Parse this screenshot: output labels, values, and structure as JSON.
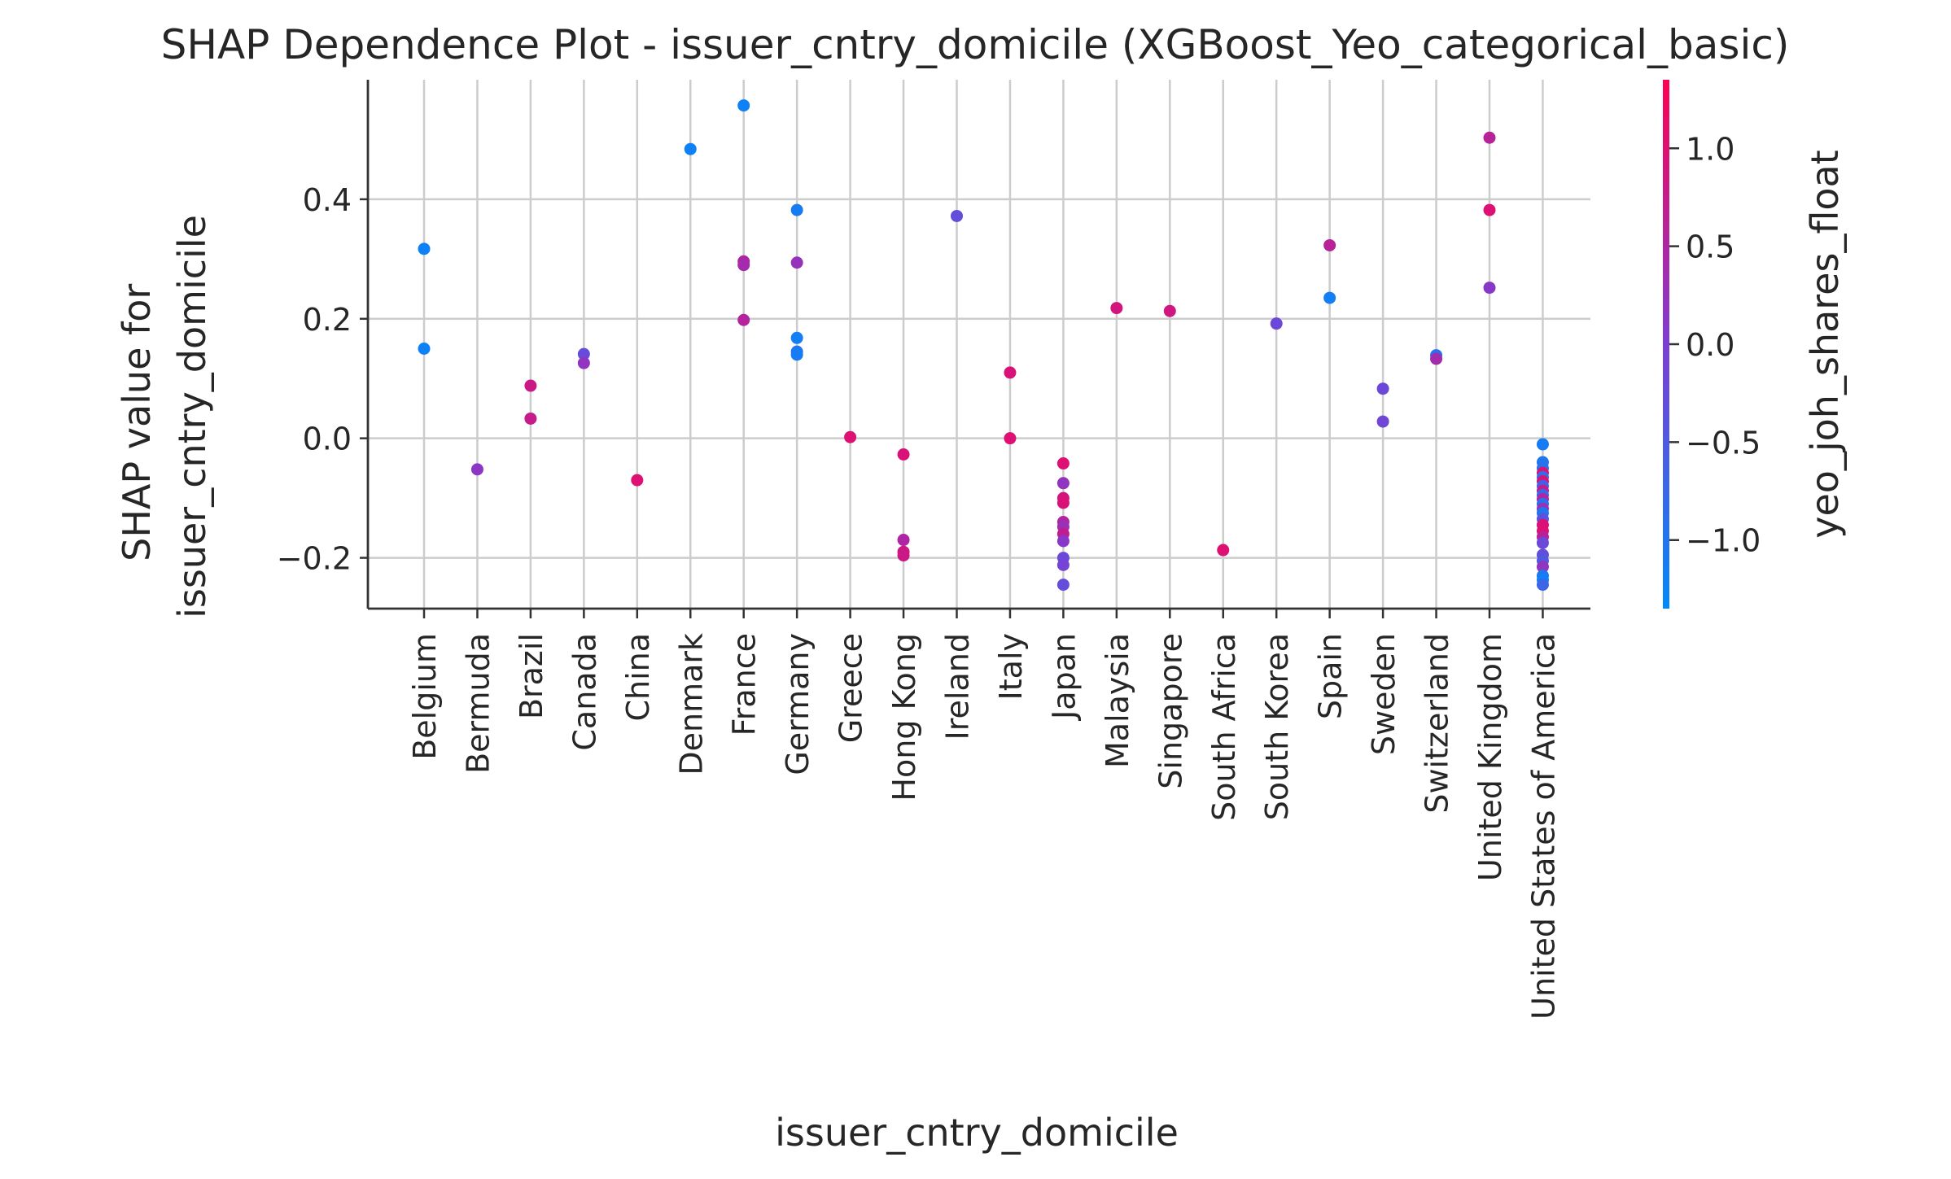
{
  "chart_data": {
    "type": "scatter",
    "title": "SHAP Dependence Plot - issuer_cntry_domicile (XGBoost_Yeo_categorical_basic)",
    "xlabel": "issuer_cntry_domicile",
    "ylabel": [
      "SHAP value for",
      "issuer_cntry_domicile"
    ],
    "colorbar_label": "yeo_joh_shares_float",
    "categories": [
      "Belgium",
      "Bermuda",
      "Brazil",
      "Canada",
      "China",
      "Denmark",
      "France",
      "Germany",
      "Greece",
      "Hong Kong",
      "Ireland",
      "Italy",
      "Japan",
      "Malaysia",
      "Singapore",
      "South Africa",
      "South Korea",
      "Spain",
      "Sweden",
      "Switzerland",
      "United Kingdom",
      "United States of America"
    ],
    "ylim": [
      -0.285,
      0.6
    ],
    "y_ticks": [
      -0.2,
      0.0,
      0.2,
      0.4
    ],
    "y_tick_labels": [
      "−0.2",
      "0.0",
      "0.2",
      "0.4"
    ],
    "color_range": [
      -1.35,
      1.35
    ],
    "color_ticks": [
      -1.0,
      -0.5,
      0.0,
      0.5,
      1.0
    ],
    "color_tick_labels": [
      "−1.0",
      "−0.5",
      "0.0",
      "0.5",
      "1.0"
    ],
    "colors": {
      "low": "#008afb",
      "mid": "#7e3dd2",
      "high": "#ff0052"
    },
    "grid": true,
    "points": [
      {
        "x": "Belgium",
        "y": 0.317,
        "c": -1.2
      },
      {
        "x": "Belgium",
        "y": 0.15,
        "c": -1.2
      },
      {
        "x": "Bermuda",
        "y": -0.052,
        "c": 0.15
      },
      {
        "x": "Brazil",
        "y": 0.088,
        "c": 0.8
      },
      {
        "x": "Brazil",
        "y": 0.033,
        "c": 0.75
      },
      {
        "x": "Canada",
        "y": 0.141,
        "c": -0.25
      },
      {
        "x": "Canada",
        "y": 0.126,
        "c": 0.2
      },
      {
        "x": "China",
        "y": -0.07,
        "c": 1.0
      },
      {
        "x": "Denmark",
        "y": 0.484,
        "c": -1.2
      },
      {
        "x": "France",
        "y": 0.557,
        "c": -1.2
      },
      {
        "x": "France",
        "y": 0.296,
        "c": 0.5
      },
      {
        "x": "France",
        "y": 0.29,
        "c": 0.4
      },
      {
        "x": "France",
        "y": 0.198,
        "c": 0.55
      },
      {
        "x": "Germany",
        "y": 0.382,
        "c": -1.1
      },
      {
        "x": "Germany",
        "y": 0.294,
        "c": 0.25
      },
      {
        "x": "Germany",
        "y": 0.168,
        "c": -1.15
      },
      {
        "x": "Germany",
        "y": 0.145,
        "c": -1.0
      },
      {
        "x": "Germany",
        "y": 0.14,
        "c": -1.1
      },
      {
        "x": "Greece",
        "y": 0.002,
        "c": 1.0
      },
      {
        "x": "Hong Kong",
        "y": -0.027,
        "c": 0.95
      },
      {
        "x": "Hong Kong",
        "y": -0.17,
        "c": 0.5
      },
      {
        "x": "Hong Kong",
        "y": -0.19,
        "c": 0.85
      },
      {
        "x": "Hong Kong",
        "y": -0.196,
        "c": 0.8
      },
      {
        "x": "Ireland",
        "y": 0.372,
        "c": -0.3
      },
      {
        "x": "Italy",
        "y": 0.11,
        "c": 0.95
      },
      {
        "x": "Italy",
        "y": 0.0,
        "c": 1.0
      },
      {
        "x": "Japan",
        "y": -0.042,
        "c": 1.0
      },
      {
        "x": "Japan",
        "y": -0.075,
        "c": 0.2
      },
      {
        "x": "Japan",
        "y": -0.1,
        "c": 0.9
      },
      {
        "x": "Japan",
        "y": -0.108,
        "c": 0.95
      },
      {
        "x": "Japan",
        "y": -0.14,
        "c": 0.5
      },
      {
        "x": "Japan",
        "y": -0.148,
        "c": 0.3
      },
      {
        "x": "Japan",
        "y": -0.16,
        "c": 0.7
      },
      {
        "x": "Japan",
        "y": -0.172,
        "c": 0.1
      },
      {
        "x": "Japan",
        "y": -0.2,
        "c": -0.2
      },
      {
        "x": "Japan",
        "y": -0.212,
        "c": -0.1
      },
      {
        "x": "Japan",
        "y": -0.245,
        "c": -0.3
      },
      {
        "x": "Malaysia",
        "y": 0.218,
        "c": 0.9
      },
      {
        "x": "Singapore",
        "y": 0.213,
        "c": 0.85
      },
      {
        "x": "South Africa",
        "y": -0.187,
        "c": 1.0
      },
      {
        "x": "South Korea",
        "y": 0.192,
        "c": -0.2
      },
      {
        "x": "Spain",
        "y": 0.323,
        "c": 0.6
      },
      {
        "x": "Spain",
        "y": 0.235,
        "c": -1.15
      },
      {
        "x": "Sweden",
        "y": 0.083,
        "c": -0.2
      },
      {
        "x": "Sweden",
        "y": 0.028,
        "c": -0.15
      },
      {
        "x": "Switzerland",
        "y": 0.139,
        "c": -0.9
      },
      {
        "x": "Switzerland",
        "y": 0.133,
        "c": 0.4
      },
      {
        "x": "United Kingdom",
        "y": 0.503,
        "c": 0.6
      },
      {
        "x": "United Kingdom",
        "y": 0.382,
        "c": 1.0
      },
      {
        "x": "United Kingdom",
        "y": 0.252,
        "c": 0.1
      },
      {
        "x": "United States of America",
        "y": -0.01,
        "c": -1.1
      },
      {
        "x": "United States of America",
        "y": -0.04,
        "c": -1.0
      },
      {
        "x": "United States of America",
        "y": -0.05,
        "c": -0.9
      },
      {
        "x": "United States of America",
        "y": -0.058,
        "c": 1.0
      },
      {
        "x": "United States of America",
        "y": -0.065,
        "c": -0.8
      },
      {
        "x": "United States of America",
        "y": -0.072,
        "c": 0.9
      },
      {
        "x": "United States of America",
        "y": -0.08,
        "c": -0.6
      },
      {
        "x": "United States of America",
        "y": -0.088,
        "c": 0.7
      },
      {
        "x": "United States of America",
        "y": -0.095,
        "c": -0.7
      },
      {
        "x": "United States of America",
        "y": -0.102,
        "c": 0.5
      },
      {
        "x": "United States of America",
        "y": -0.11,
        "c": -0.9
      },
      {
        "x": "United States of America",
        "y": -0.118,
        "c": 0.3
      },
      {
        "x": "United States of America",
        "y": -0.125,
        "c": -1.0
      },
      {
        "x": "United States of America",
        "y": -0.135,
        "c": -0.4
      },
      {
        "x": "United States of America",
        "y": -0.145,
        "c": 0.95
      },
      {
        "x": "United States of America",
        "y": -0.155,
        "c": 1.0
      },
      {
        "x": "United States of America",
        "y": -0.165,
        "c": 0.6
      },
      {
        "x": "United States of America",
        "y": -0.175,
        "c": -0.2
      },
      {
        "x": "United States of America",
        "y": -0.195,
        "c": -0.3
      },
      {
        "x": "United States of America",
        "y": -0.205,
        "c": -0.5
      },
      {
        "x": "United States of America",
        "y": -0.215,
        "c": 0.2
      },
      {
        "x": "United States of America",
        "y": -0.23,
        "c": -1.0
      },
      {
        "x": "United States of America",
        "y": -0.237,
        "c": -1.2
      },
      {
        "x": "United States of America",
        "y": -0.245,
        "c": -0.7
      }
    ]
  }
}
